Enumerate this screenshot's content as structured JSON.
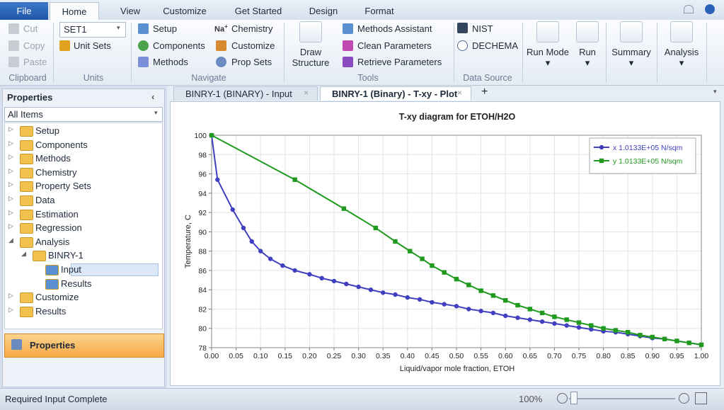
{
  "ribbon": {
    "tabs": [
      "File",
      "Home",
      "View",
      "Customize",
      "Get Started",
      "Design",
      "Format"
    ],
    "active_tab": 1,
    "groups": [
      {
        "label": "Clipboard",
        "items": [
          "Cut",
          "Copy",
          "Paste"
        ]
      },
      {
        "label": "Units",
        "items": [
          "SET1",
          "Unit Sets"
        ]
      },
      {
        "label": "Navigate",
        "items": [
          "Setup",
          "Components",
          "Methods",
          "Chemistry",
          "Customize",
          "Prop Sets"
        ]
      },
      {
        "label": "Tools",
        "items": [
          "Draw Structure",
          "Methods Assistant",
          "Clean Parameters",
          "Retrieve Parameters"
        ]
      },
      {
        "label": "Data Source",
        "items": [
          "NIST",
          "DECHEMA"
        ]
      }
    ],
    "buttons": [
      "Run Mode",
      "Run",
      "Summary",
      "Analysis"
    ]
  },
  "sidebar": {
    "title": "Properties",
    "filter": "All Items",
    "tree": [
      {
        "label": "Setup"
      },
      {
        "label": "Components"
      },
      {
        "label": "Methods"
      },
      {
        "label": "Chemistry"
      },
      {
        "label": "Property Sets"
      },
      {
        "label": "Data"
      },
      {
        "label": "Estimation"
      },
      {
        "label": "Regression"
      },
      {
        "label": "Analysis",
        "children": [
          {
            "label": "BINRY-1",
            "children": [
              {
                "label": "Input",
                "selected": true
              },
              {
                "label": "Results"
              }
            ]
          }
        ]
      },
      {
        "label": "Customize"
      },
      {
        "label": "Results"
      }
    ],
    "footer_button": "Properties"
  },
  "document_tabs": {
    "items": [
      "BINRY-1 (BINARY) - Input",
      "BINRY-1 (Binary) - T-xy - Plot"
    ],
    "active": 1
  },
  "chart_data": {
    "type": "line",
    "title": "T-xy diagram for ETOH/H2O",
    "xlabel": "Liquid/vapor mole fraction, ETOH",
    "ylabel": "Temperature, C",
    "xlim": [
      0,
      1
    ],
    "ylim": [
      78,
      100
    ],
    "xticks": [
      {
        "value": 0,
        "label": "0.00"
      },
      {
        "value": 0.05,
        "label": "0.05"
      },
      {
        "value": 0.1,
        "label": "0.10"
      },
      {
        "value": 0.15,
        "label": "0.15"
      },
      {
        "value": 0.2,
        "label": "0.20"
      },
      {
        "value": 0.25,
        "label": "0.25"
      },
      {
        "value": 0.3,
        "label": "0.30"
      },
      {
        "value": 0.35,
        "label": "0.35"
      },
      {
        "value": 0.4,
        "label": "0.40"
      },
      {
        "value": 0.45,
        "label": "0.45"
      },
      {
        "value": 0.5,
        "label": "0.50"
      },
      {
        "value": 0.55,
        "label": "0.55"
      },
      {
        "value": 0.6,
        "label": "0.60"
      },
      {
        "value": 0.65,
        "label": "0.65"
      },
      {
        "value": 0.7,
        "label": "0.70"
      },
      {
        "value": 0.75,
        "label": "0.75"
      },
      {
        "value": 0.8,
        "label": "0.80"
      },
      {
        "value": 0.85,
        "label": "0.85"
      },
      {
        "value": 0.9,
        "label": "0.90"
      },
      {
        "value": 0.95,
        "label": "0.95"
      },
      {
        "value": 1,
        "label": "1.00"
      }
    ],
    "yticks": [
      78,
      80,
      82,
      84,
      86,
      88,
      90,
      92,
      94,
      96,
      98,
      100
    ],
    "grid": true,
    "legend": "upper right",
    "series": [
      {
        "name": "x  1.0133E+05 N/sqm",
        "color": "#3f3fc0",
        "marker": "circle",
        "x": [
          0,
          0.012,
          0.043,
          0.065,
          0.082,
          0.1,
          0.12,
          0.145,
          0.17,
          0.2,
          0.225,
          0.25,
          0.275,
          0.3,
          0.325,
          0.35,
          0.375,
          0.4,
          0.425,
          0.45,
          0.475,
          0.5,
          0.525,
          0.55,
          0.575,
          0.6,
          0.625,
          0.65,
          0.675,
          0.7,
          0.725,
          0.75,
          0.775,
          0.8,
          0.825,
          0.85,
          0.875,
          0.9,
          0.925,
          0.95,
          0.975,
          1
        ],
        "values": [
          100,
          95.4,
          92.3,
          90.4,
          89,
          88,
          87.2,
          86.5,
          86,
          85.6,
          85.2,
          84.9,
          84.6,
          84.3,
          84,
          83.7,
          83.5,
          83.2,
          83,
          82.7,
          82.5,
          82.3,
          82,
          81.8,
          81.6,
          81.3,
          81.1,
          80.9,
          80.7,
          80.5,
          80.3,
          80.1,
          79.9,
          79.7,
          79.6,
          79.4,
          79.2,
          79,
          78.9,
          78.7,
          78.5,
          78.3
        ]
      },
      {
        "name": "y  1.0133E+05 N/sqm",
        "color": "#1f9a1f",
        "marker": "square",
        "x": [
          0,
          0.17,
          0.27,
          0.335,
          0.375,
          0.405,
          0.43,
          0.45,
          0.475,
          0.5,
          0.525,
          0.55,
          0.575,
          0.6,
          0.625,
          0.65,
          0.675,
          0.7,
          0.725,
          0.75,
          0.775,
          0.8,
          0.825,
          0.85,
          0.875,
          0.9,
          0.925,
          0.95,
          0.975,
          1
        ],
        "values": [
          100,
          95.4,
          92.4,
          90.4,
          89,
          88,
          87.2,
          86.5,
          85.8,
          85.1,
          84.5,
          83.9,
          83.4,
          82.9,
          82.4,
          82,
          81.6,
          81.2,
          80.9,
          80.6,
          80.3,
          80,
          79.8,
          79.6,
          79.3,
          79.1,
          78.9,
          78.7,
          78.5,
          78.3
        ]
      }
    ]
  },
  "status_bar": {
    "message": "Required Input Complete",
    "zoom": "100%"
  }
}
